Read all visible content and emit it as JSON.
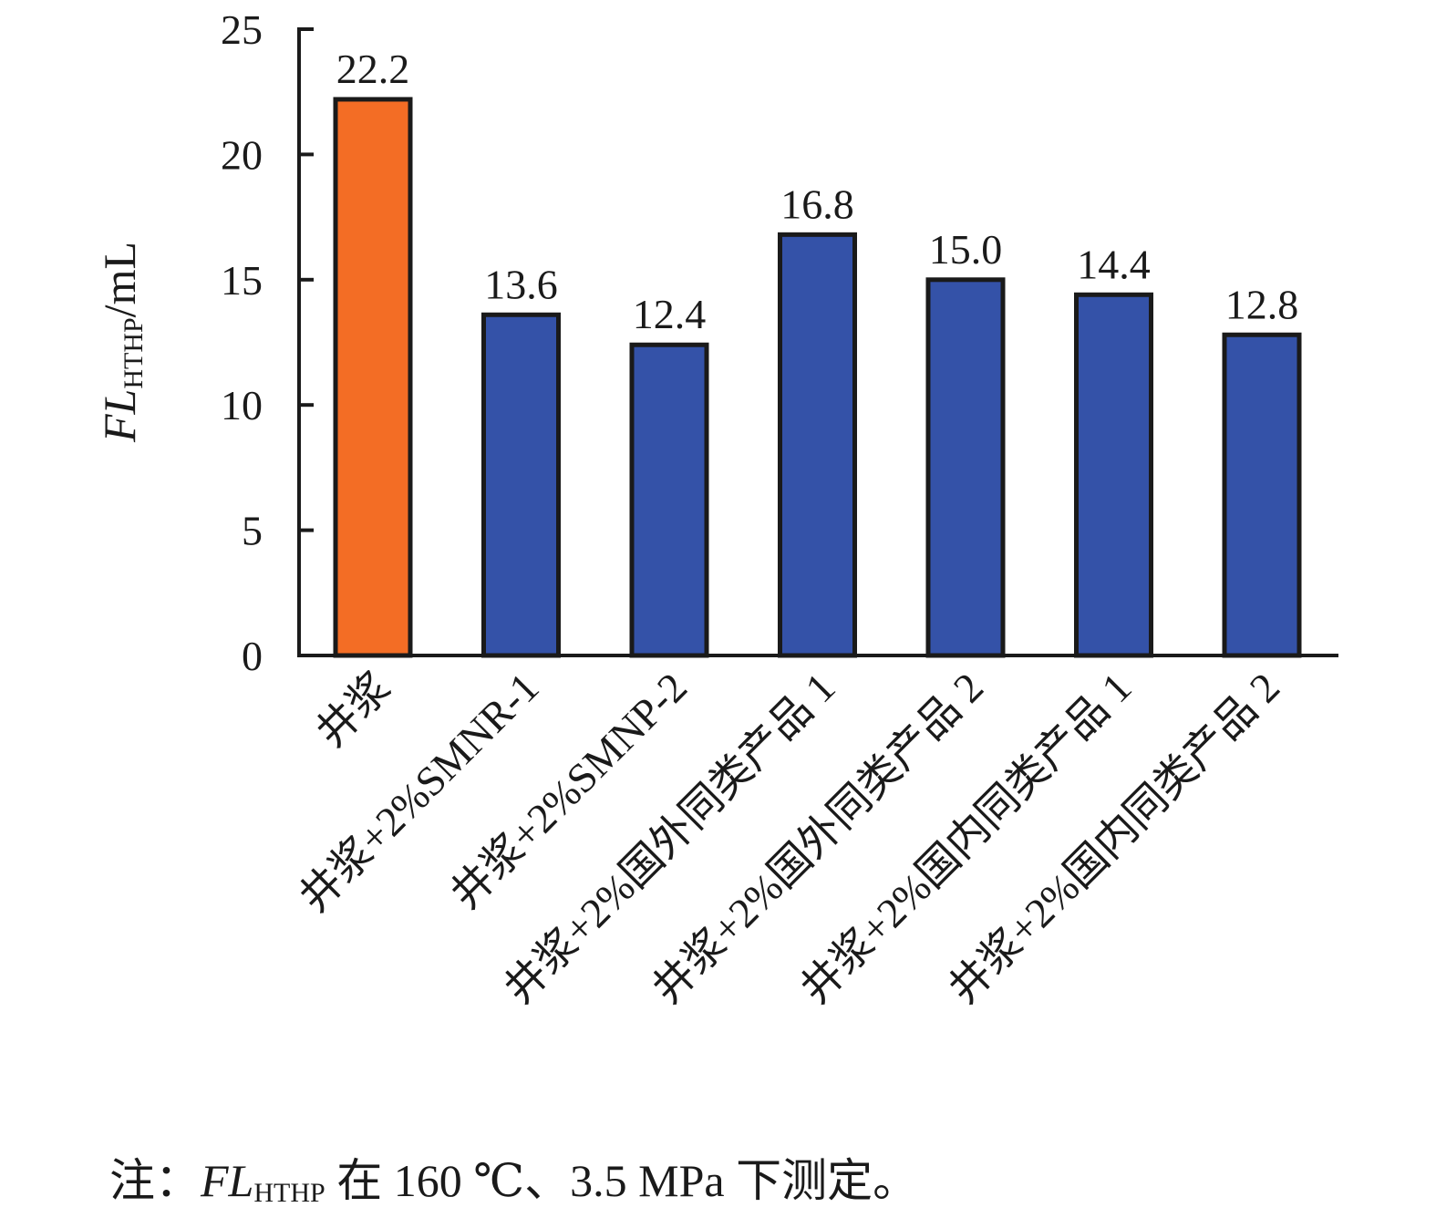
{
  "chart_data": {
    "type": "bar",
    "categories": [
      "井浆",
      "井浆+2%SMNR-1",
      "井浆+2%SMNP-2",
      "井浆+2%国外同类产品 1",
      "井浆+2%国外同类产品 2",
      "井浆+2%国内同类产品 1",
      "井浆+2%国内同类产品 2"
    ],
    "values": [
      22.2,
      13.6,
      12.4,
      16.8,
      15.0,
      14.4,
      12.8
    ],
    "value_labels": [
      "22.2",
      "13.6",
      "12.4",
      "16.8",
      "15.0",
      "14.4",
      "12.8"
    ],
    "ylabel": {
      "main": "FL",
      "sub": "HTHP",
      "unit": "/mL"
    },
    "ylim": [
      0,
      25
    ],
    "yticks": [
      0,
      5,
      10,
      15,
      20,
      25
    ],
    "ytick_labels": [
      "0",
      "5",
      "10",
      "15",
      "20",
      "25"
    ],
    "grid": false,
    "colors": {
      "highlight": "#F36D25",
      "default": "#3452A8",
      "outline": "#1a1a1a"
    },
    "highlight_index": 0
  },
  "note": {
    "prefix": "注：",
    "fl": "FL",
    "sub": "HTHP",
    "suffix": " 在 160 ℃、3.5 MPa 下测定。"
  }
}
